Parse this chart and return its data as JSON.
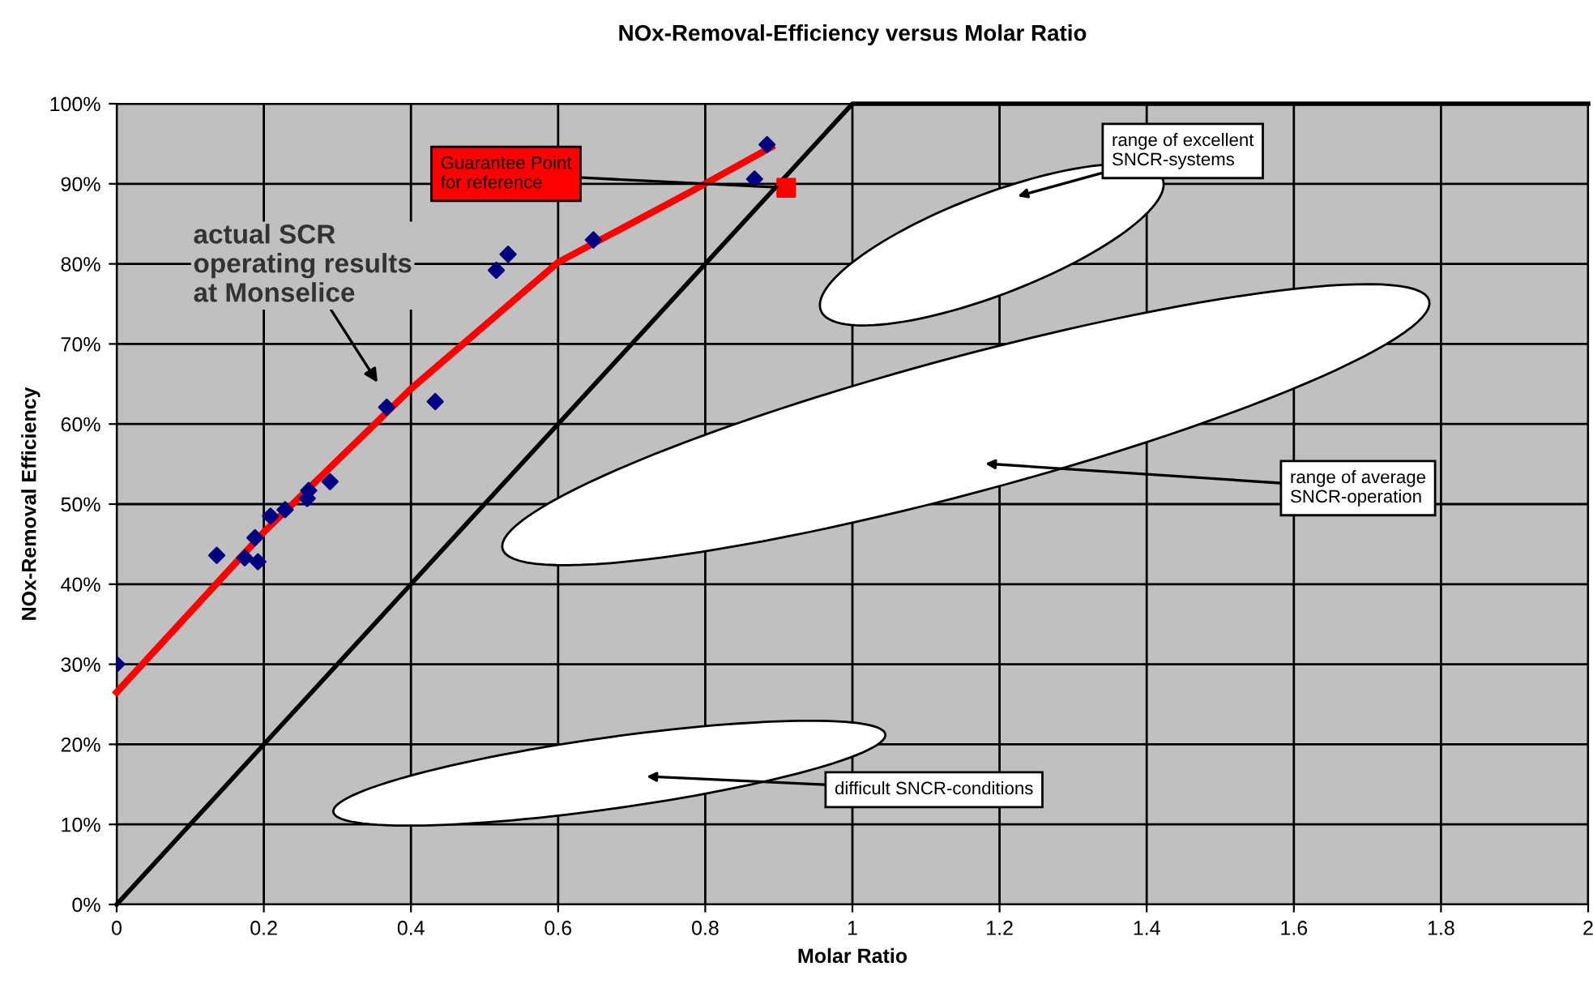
{
  "chart_data": {
    "type": "scatter",
    "title": "NOx-Removal-Efficiency versus Molar Ratio",
    "xlabel": "Molar Ratio",
    "ylabel": "NOx-Removal Efficiency",
    "xlim": [
      0,
      2
    ],
    "xticks": [
      0,
      0.2,
      0.4,
      0.6,
      0.8,
      1,
      1.2,
      1.4,
      1.6,
      1.8,
      2
    ],
    "ylim": [
      0,
      100
    ],
    "yticks": [
      {
        "value": 0,
        "label": "0%"
      },
      {
        "value": 10,
        "label": "10%"
      },
      {
        "value": 20,
        "label": "20%"
      },
      {
        "value": 30,
        "label": "30%"
      },
      {
        "value": 40,
        "label": "40%"
      },
      {
        "value": 50,
        "label": "50%"
      },
      {
        "value": 60,
        "label": "60%"
      },
      {
        "value": 70,
        "label": "70%"
      },
      {
        "value": 80,
        "label": "80%"
      },
      {
        "value": 90,
        "label": "90%"
      },
      {
        "value": 100,
        "label": "100%"
      }
    ],
    "grid": true,
    "legend": false,
    "series": [
      {
        "type": "line",
        "color": "#000000",
        "marker": "none",
        "x": [
          0,
          1,
          2
        ],
        "values": [
          0,
          100,
          100
        ]
      },
      {
        "type": "line",
        "color": "#ff0000",
        "marker": "none",
        "x": [
          0,
          0.2,
          0.4,
          0.6,
          0.78,
          0.89
        ],
        "values": [
          26.5,
          46.5,
          64.4,
          80.2,
          89,
          94.6
        ]
      },
      {
        "color": "#000080",
        "marker": "diamond",
        "x": [
          0,
          0.136,
          0.174,
          0.192,
          0.188,
          0.209,
          0.229,
          0.259,
          0.261,
          0.29,
          0.367,
          0.433,
          0.516,
          0.532,
          0.648,
          0.867,
          0.884
        ],
        "values": [
          30,
          43.6,
          43.3,
          42.8,
          45.8,
          48.5,
          49.3,
          50.7,
          51.7,
          52.8,
          62.1,
          62.8,
          79.2,
          81.2,
          83,
          90.6,
          94.9
        ]
      },
      {
        "color": "#ff0000",
        "marker": "square",
        "x": [
          0.91
        ],
        "values": [
          89.5
        ]
      }
    ],
    "annotations": [
      "actual SCR\noperating results\nat Monselice",
      {
        "text": "Guarantee Point\nfor reference",
        "x": 0.91,
        "y": 89.5
      },
      "range of excellent\nSNCR-systems",
      "range of average\nSNCR-operation",
      "difficult SNCR-conditions"
    ]
  }
}
